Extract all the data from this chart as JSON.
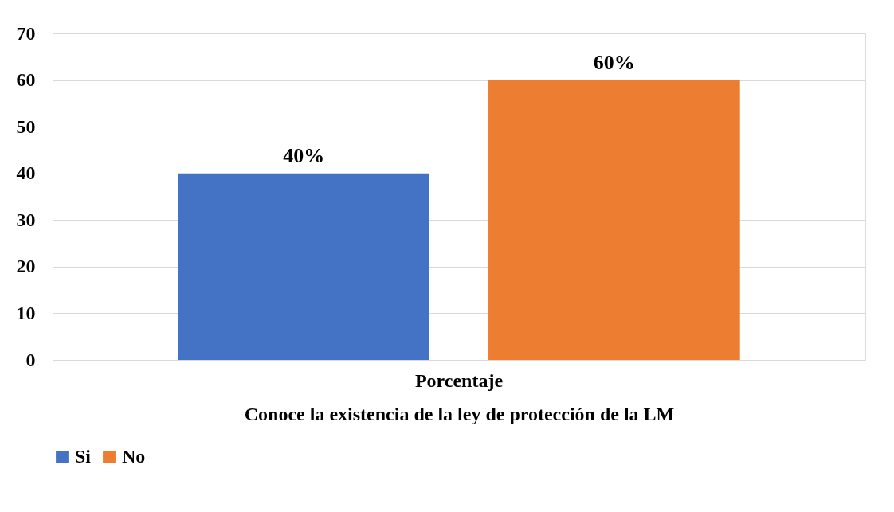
{
  "chart_data": {
    "type": "bar",
    "xlabel": "Conoce la existencia de la ley de protección de la LM",
    "categories": [
      "Porcentaje"
    ],
    "series": [
      {
        "name": "Si",
        "color": "#4472c4",
        "values": [
          40
        ],
        "value_labels": [
          "40%"
        ]
      },
      {
        "name": "No",
        "color": "#ed7d31",
        "values": [
          60
        ],
        "value_labels": [
          "60%"
        ]
      }
    ],
    "ylim": [
      0,
      70
    ],
    "yticks": [
      0,
      10,
      20,
      30,
      40,
      50,
      60,
      70
    ],
    "grid": "y",
    "legend": "bottom"
  }
}
